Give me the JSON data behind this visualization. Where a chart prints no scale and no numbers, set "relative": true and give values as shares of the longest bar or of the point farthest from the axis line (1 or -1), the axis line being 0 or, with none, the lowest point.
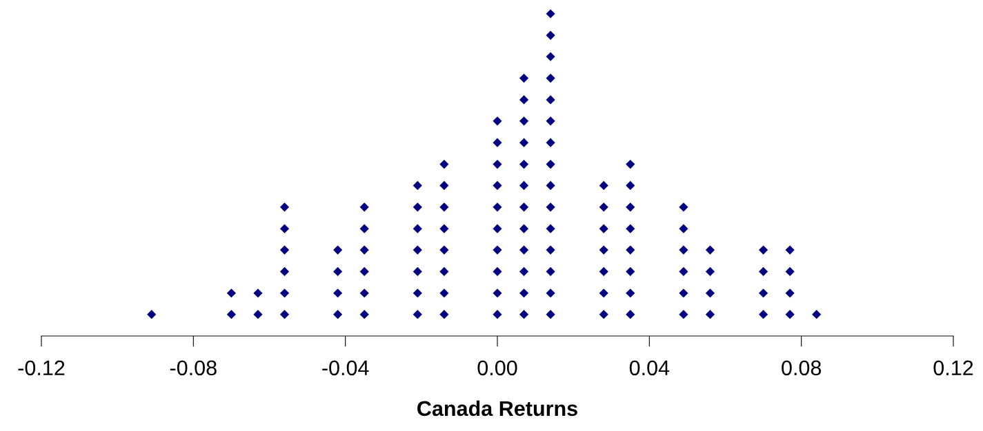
{
  "chart_data": {
    "type": "scatter",
    "relative": true,
    "xlabel": "Canada Returns",
    "color": "#000080",
    "marker": "diamond",
    "grid": false,
    "tick_labels": "x",
    "xlim": [
      -0.12,
      0.12
    ],
    "xticks": [
      -0.12,
      -0.08,
      -0.04,
      {
        "value": 0,
        "label": "0.00"
      },
      0.04,
      0.08,
      0.12
    ],
    "x": [
      -0.091,
      -0.07,
      -0.07,
      -0.063,
      -0.063,
      -0.056,
      -0.056,
      -0.056,
      -0.056,
      -0.056,
      -0.056,
      -0.042,
      -0.042,
      -0.042,
      -0.042,
      -0.035,
      -0.035,
      -0.035,
      -0.035,
      -0.035,
      -0.035,
      -0.021,
      -0.021,
      -0.021,
      -0.021,
      -0.021,
      -0.021,
      -0.021,
      -0.014,
      -0.014,
      -0.014,
      -0.014,
      -0.014,
      -0.014,
      -0.014,
      -0.014,
      0,
      0,
      0,
      0,
      0,
      0,
      0,
      0,
      0,
      0,
      0.007,
      0.007,
      0.007,
      0.007,
      0.007,
      0.007,
      0.007,
      0.007,
      0.007,
      0.007,
      0.007,
      0.007,
      0.014,
      0.014,
      0.014,
      0.014,
      0.014,
      0.014,
      0.014,
      0.014,
      0.014,
      0.014,
      0.014,
      0.014,
      0.014,
      0.014,
      0.014,
      0.028,
      0.028,
      0.028,
      0.028,
      0.028,
      0.028,
      0.028,
      0.035,
      0.035,
      0.035,
      0.035,
      0.035,
      0.035,
      0.035,
      0.035,
      0.049,
      0.049,
      0.049,
      0.049,
      0.049,
      0.049,
      0.056,
      0.056,
      0.056,
      0.056,
      0.07,
      0.07,
      0.07,
      0.07,
      0.077,
      0.077,
      0.077,
      0.077,
      0.084
    ],
    "values": [
      0.067,
      0.067,
      0.133,
      0.067,
      0.133,
      0.067,
      0.133,
      0.2,
      0.267,
      0.333,
      0.4,
      0.067,
      0.133,
      0.2,
      0.267,
      0.067,
      0.133,
      0.2,
      0.267,
      0.333,
      0.4,
      0.067,
      0.133,
      0.2,
      0.267,
      0.333,
      0.4,
      0.467,
      0.067,
      0.133,
      0.2,
      0.267,
      0.333,
      0.4,
      0.467,
      0.533,
      0.067,
      0.133,
      0.2,
      0.267,
      0.333,
      0.4,
      0.467,
      0.533,
      0.6,
      0.667,
      0.067,
      0.133,
      0.2,
      0.267,
      0.333,
      0.4,
      0.467,
      0.533,
      0.6,
      0.667,
      0.733,
      0.8,
      0.067,
      0.133,
      0.2,
      0.267,
      0.333,
      0.4,
      0.467,
      0.533,
      0.6,
      0.667,
      0.733,
      0.8,
      0.867,
      0.933,
      1,
      0.067,
      0.133,
      0.2,
      0.267,
      0.333,
      0.4,
      0.467,
      0.067,
      0.133,
      0.2,
      0.267,
      0.333,
      0.4,
      0.467,
      0.533,
      0.067,
      0.133,
      0.2,
      0.267,
      0.333,
      0.4,
      0.067,
      0.133,
      0.2,
      0.267,
      0.067,
      0.133,
      0.2,
      0.267,
      0.067,
      0.133,
      0.2,
      0.267,
      0.067
    ]
  }
}
